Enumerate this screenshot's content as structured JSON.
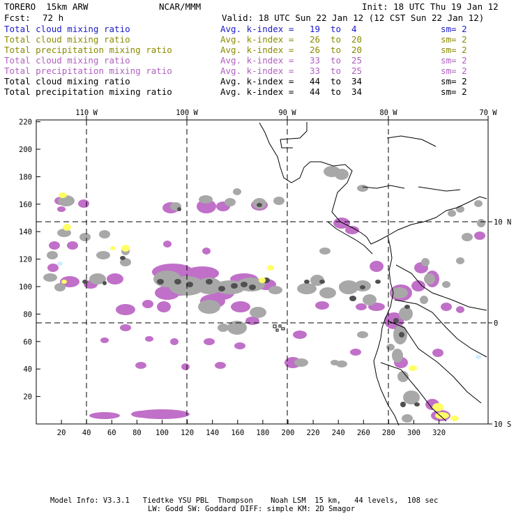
{
  "header": {
    "model": "TORERO  15km ARW",
    "org": "NCAR/MMM",
    "init": "Init: 18 UTC Thu 19 Jan 12",
    "fcst_label": "Fcst:",
    "fcst_value": "72 h",
    "valid": "Valid: 18 UTC Sun 22 Jan 12 (12 CST Sun 22 Jan 12)"
  },
  "legend": [
    {
      "field": "Total cloud mixing ratio",
      "avg": "Avg. k-index =",
      "k1": "19",
      "to": "to",
      "k2": "4",
      "sm": "sm= 2",
      "color": "#1a1ac8"
    },
    {
      "field": "Total cloud mixing ratio",
      "avg": "Avg. k-index =",
      "k1": "26",
      "to": "to",
      "k2": "20",
      "sm": "sm= 2",
      "color": "#8a8a00"
    },
    {
      "field": "Total precipitation mixing ratio",
      "avg": "Avg. k-index =",
      "k1": "26",
      "to": "to",
      "k2": "20",
      "sm": "sm= 2",
      "color": "#8a8a00"
    },
    {
      "field": "Total cloud mixing ratio",
      "avg": "Avg. k-index =",
      "k1": "33",
      "to": "to",
      "k2": "25",
      "sm": "sm= 2",
      "color": "#b060c0"
    },
    {
      "field": "Total precipitation mixing ratio",
      "avg": "Avg. k-index =",
      "k1": "33",
      "to": "to",
      "k2": "25",
      "sm": "sm= 2",
      "color": "#b060c0"
    },
    {
      "field": "Total cloud mixing ratio",
      "avg": "Avg. k-index =",
      "k1": "44",
      "to": "to",
      "k2": "34",
      "sm": "sm= 2",
      "color": "#000000"
    },
    {
      "field": "Total precipitation mixing ratio",
      "avg": "Avg. k-index =",
      "k1": "44",
      "to": "to",
      "k2": "34",
      "sm": "sm= 2",
      "color": "#000000"
    }
  ],
  "map": {
    "lon_labels": [
      "110 W",
      "100 W",
      "90 W",
      "80 W",
      "70 W"
    ],
    "lat_labels": [
      "10 N",
      "0",
      "10 S"
    ],
    "x_ticks": [
      "20",
      "40",
      "60",
      "80",
      "100",
      "120",
      "140",
      "160",
      "180",
      "200",
      "220",
      "240",
      "260",
      "280",
      "300",
      "320"
    ],
    "y_ticks": [
      "20",
      "40",
      "60",
      "80",
      "100",
      "120",
      "140",
      "160",
      "180",
      "200",
      "220"
    ],
    "colors": {
      "gray": "#a8a8a8",
      "dark_gray": "#505050",
      "purple": "#c070c8",
      "yellow": "#ffff66",
      "cyan": "#cceeff"
    }
  },
  "footer": {
    "line1": "Model Info: V3.3.1   Tiedtke YSU PBL  Thompson    Noah LSM  15 km,   44 levels,  108 sec",
    "line2": "LW: Godd SW: Goddard DIFF: simple KM: 2D Smagor"
  }
}
